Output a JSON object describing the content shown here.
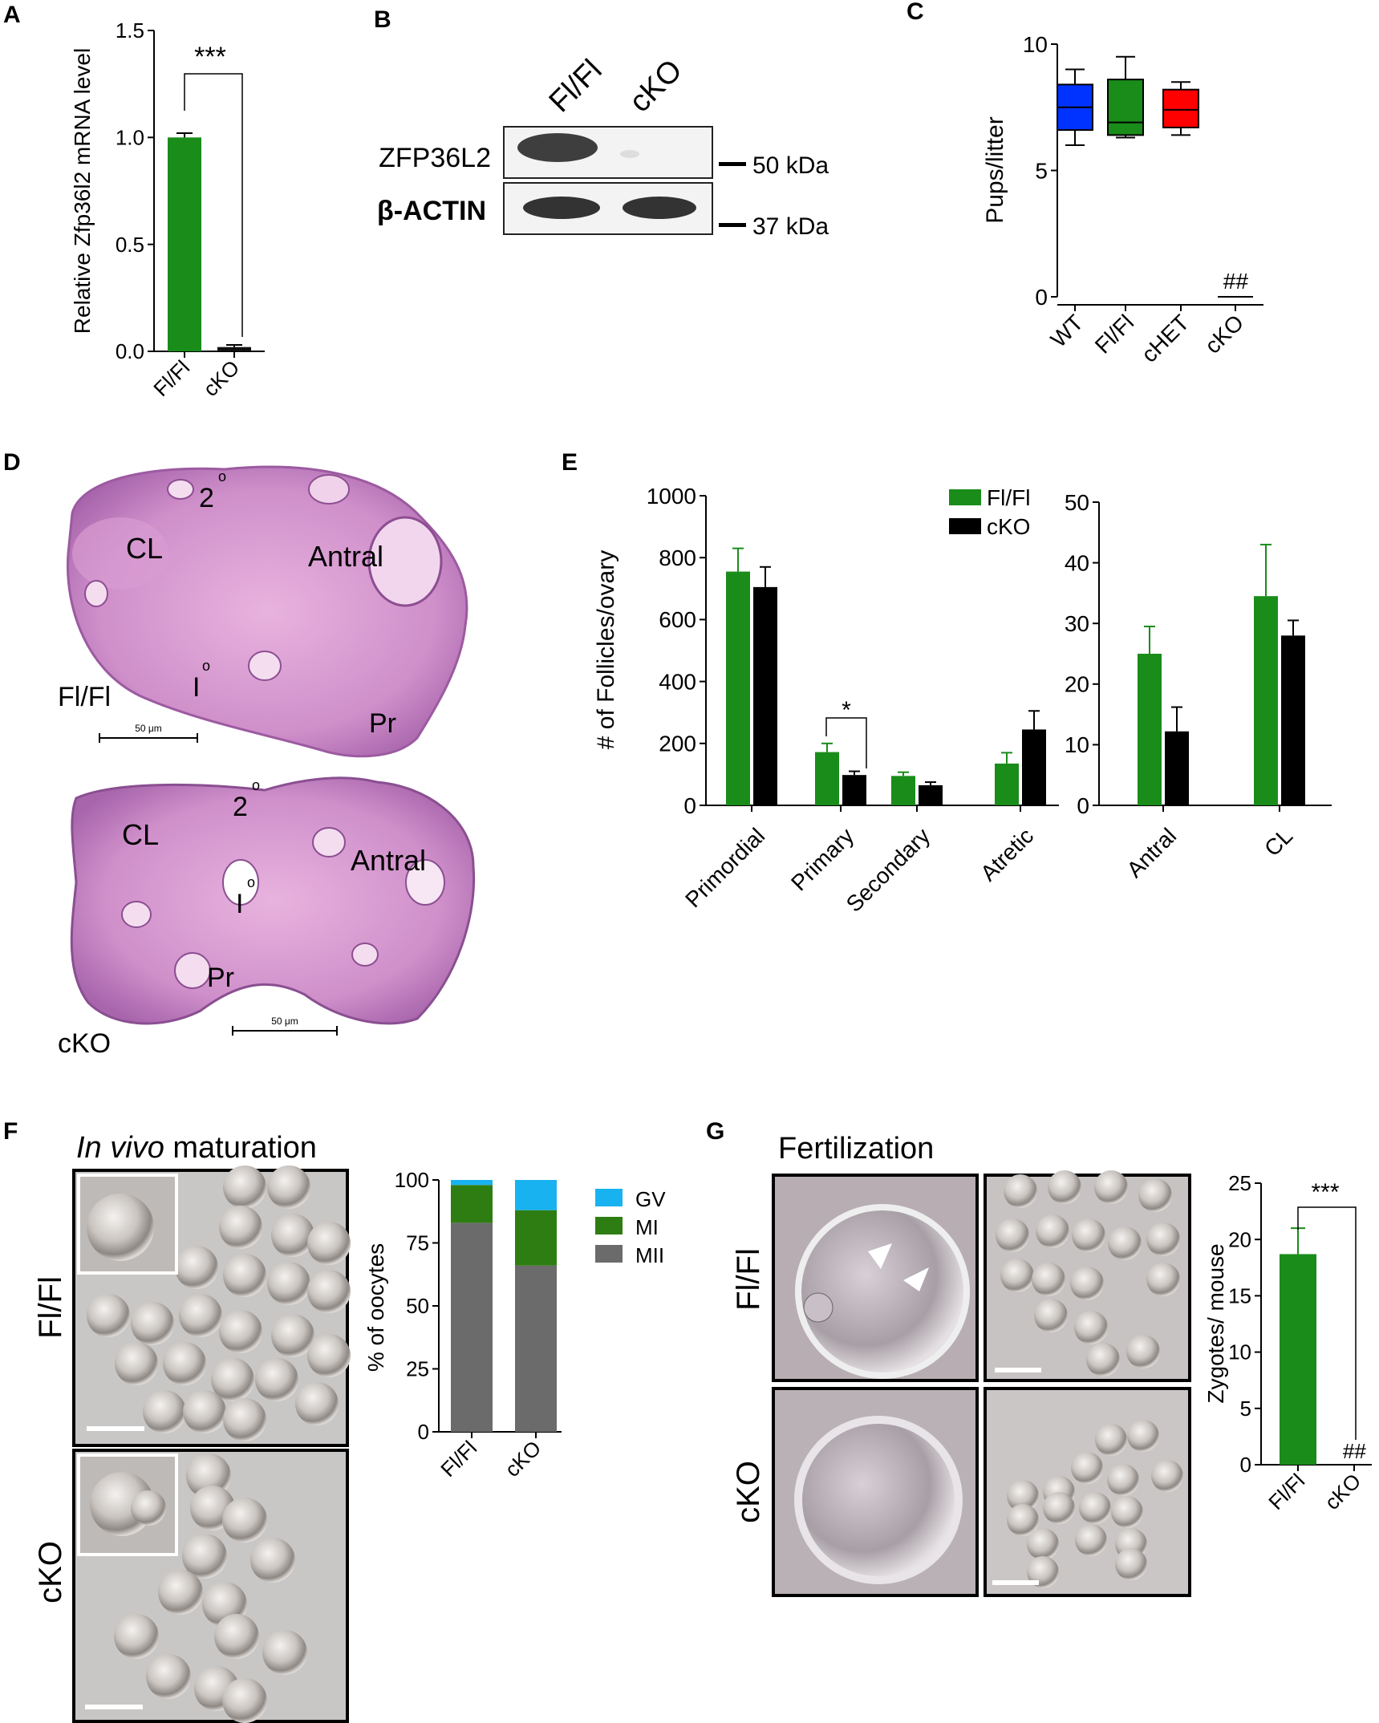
{
  "panels": {
    "a": "A",
    "b": "B",
    "c": "C",
    "d": "D",
    "e": "E",
    "f": "F",
    "g": "G"
  },
  "sig": {
    "three_star": "***",
    "one_star": "*",
    "hash": "##"
  },
  "chart_data": [
    {
      "id": "A",
      "type": "bar",
      "categories": [
        "Fl/Fl",
        "cKO"
      ],
      "values": [
        1.0,
        0.02
      ],
      "errors": [
        0.02,
        0.01
      ],
      "colors": [
        "#1a8c1a",
        "#111111"
      ],
      "ylabel": "Relative Zfp36l2 mRNA level",
      "ylim": [
        0,
        1.5
      ],
      "yticks": [
        "0.0",
        "0.5",
        "1.0",
        "1.5"
      ],
      "annotation": "***"
    },
    {
      "id": "C",
      "type": "box",
      "categories": [
        "WT",
        "Fl/Fl",
        "cHET",
        "cKO"
      ],
      "ylabel": "Pups/litter",
      "ylim": [
        0,
        10
      ],
      "yticks": [
        "0",
        "5",
        "10"
      ],
      "boxes": [
        {
          "name": "WT",
          "min": 6.0,
          "q1": 6.6,
          "median": 7.5,
          "q3": 8.4,
          "max": 9.0,
          "color": "#0033ff"
        },
        {
          "name": "Fl/Fl",
          "min": 6.3,
          "q1": 6.4,
          "median": 6.9,
          "q3": 8.6,
          "max": 9.5,
          "color": "#1a8c1a"
        },
        {
          "name": "cHET",
          "min": 6.4,
          "q1": 6.7,
          "median": 7.4,
          "q3": 8.2,
          "max": 8.5,
          "color": "#ff0000"
        },
        {
          "name": "cKO",
          "min": 0,
          "q1": 0,
          "median": 0,
          "q3": 0,
          "max": 0,
          "color": "#000000"
        }
      ],
      "annotation": "##"
    },
    {
      "id": "E-left",
      "type": "bar",
      "categories": [
        "Primordial",
        "Primary",
        "Secondary",
        "Atretic"
      ],
      "series": [
        {
          "name": "Fl/Fl",
          "values": [
            755,
            172,
            95,
            135
          ],
          "errors": [
            75,
            28,
            12,
            35
          ],
          "color": "#1a8c1a"
        },
        {
          "name": "cKO",
          "values": [
            705,
            98,
            65,
            245
          ],
          "errors": [
            65,
            12,
            10,
            60
          ],
          "color": "#000000"
        }
      ],
      "ylabel": "# of Follicles/ovary",
      "ylim": [
        0,
        1000
      ],
      "yticks": [
        "0",
        "200",
        "400",
        "600",
        "800",
        "1000"
      ],
      "annotation": "*",
      "legend": "top-right"
    },
    {
      "id": "E-right",
      "type": "bar",
      "categories": [
        "Antral",
        "CL"
      ],
      "series": [
        {
          "name": "Fl/Fl",
          "values": [
            25,
            34.5
          ],
          "errors": [
            4.5,
            8.5
          ],
          "color": "#1a8c1a"
        },
        {
          "name": "cKO",
          "values": [
            12.2,
            28
          ],
          "errors": [
            4,
            2.5
          ],
          "color": "#000000"
        }
      ],
      "ylim": [
        0,
        50
      ],
      "yticks": [
        "0",
        "10",
        "20",
        "30",
        "40",
        "50"
      ]
    },
    {
      "id": "F",
      "type": "stacked-bar",
      "categories": [
        "Fl/Fl",
        "cKO"
      ],
      "series": [
        {
          "name": "MII",
          "values": [
            83,
            66
          ],
          "color": "#6b6b6b"
        },
        {
          "name": "MI",
          "values": [
            15,
            22
          ],
          "color": "#2e7d12"
        },
        {
          "name": "GV",
          "values": [
            2,
            12
          ],
          "color": "#19b2f0"
        }
      ],
      "ylabel": "% of oocytes",
      "ylim": [
        0,
        100
      ],
      "yticks": [
        "0",
        "25",
        "50",
        "75",
        "100"
      ],
      "legend": "right"
    },
    {
      "id": "G",
      "type": "bar",
      "categories": [
        "Fl/Fl",
        "cKO"
      ],
      "values": [
        18.7,
        0
      ],
      "errors": [
        2.3,
        0
      ],
      "colors": [
        "#1a8c1a",
        "#111111"
      ],
      "ylabel": "Zygotes/ mouse",
      "ylim": [
        0,
        25
      ],
      "yticks": [
        "0",
        "5",
        "10",
        "15",
        "20",
        "25"
      ],
      "annotation": "***",
      "annotation2": "##"
    }
  ],
  "blot": {
    "lanes": [
      "Fl/Fl",
      "cKO"
    ],
    "rows": [
      "ZFP36L2",
      "β-ACTIN"
    ],
    "markers": [
      "50 kDa",
      "37 kDa"
    ]
  },
  "histology": {
    "labels_top": {
      "two": "2",
      "one": "I",
      "circle": "o",
      "cl": "CL",
      "antral": "Antral",
      "pr": "Pr",
      "genotype": "Fl/Fl",
      "scale": "50 μm"
    },
    "labels_bottom": {
      "two": "2",
      "one": "I",
      "circle": "o",
      "cl": "CL",
      "antral": "Antral",
      "pr": "Pr",
      "genotype": "cKO",
      "scale": "50 μm"
    }
  },
  "panel_f": {
    "title_italic": "In vivo",
    "title_rest": " maturation",
    "row1": "Fl/Fl",
    "row2": "cKO"
  },
  "panel_g": {
    "title": "Fertilization",
    "row1": "Fl/Fl",
    "row2": "cKO"
  }
}
